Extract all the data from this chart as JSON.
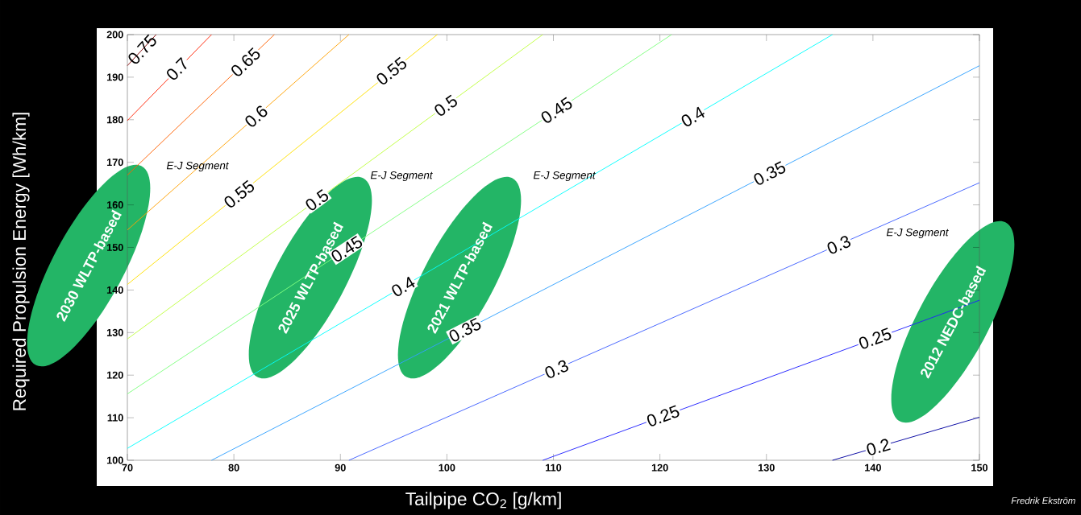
{
  "chart_data": {
    "type": "line",
    "xlabel": "Tailpipe CO$_{2}$  [g/km]",
    "ylabel": "Required Propulsion Energy  [Wh/km]",
    "xlim": [
      70,
      150
    ],
    "ylim": [
      100,
      200
    ],
    "xticks": [
      70,
      80,
      90,
      100,
      110,
      120,
      130,
      140,
      150
    ],
    "yticks": [
      100,
      110,
      120,
      130,
      140,
      150,
      160,
      170,
      180,
      190,
      200
    ],
    "series": [
      {
        "color": "#800000",
        "x": [
          70,
          72.7
        ],
        "values": [
          192.7,
          200
        ]
      },
      {
        "color": "#ff2000",
        "x": [
          70,
          77.9
        ],
        "values": [
          179.8,
          200
        ]
      },
      {
        "color": "#ff6000",
        "x": [
          70,
          83.8
        ],
        "values": [
          167.0,
          200
        ]
      },
      {
        "color": "#ffa000",
        "x": [
          70,
          90.8
        ],
        "values": [
          154.1,
          200
        ]
      },
      {
        "color": "#ffe000",
        "x": [
          70,
          99.1
        ],
        "values": [
          141.3,
          200
        ]
      },
      {
        "color": "#c0ff40",
        "x": [
          70,
          109.0
        ],
        "values": [
          128.5,
          200
        ]
      },
      {
        "color": "#80ff80",
        "x": [
          70,
          121.1
        ],
        "values": [
          115.6,
          200
        ]
      },
      {
        "color": "#00ffff",
        "x": [
          70,
          136.2
        ],
        "values": [
          102.8,
          200
        ]
      },
      {
        "color": "#30a0ff",
        "x": [
          77.9,
          150
        ],
        "values": [
          100,
          192.7
        ]
      },
      {
        "color": "#4060ff",
        "x": [
          90.8,
          150
        ],
        "values": [
          100,
          165.2
        ]
      },
      {
        "color": "#2020ff",
        "x": [
          109.0,
          150
        ],
        "values": [
          100,
          137.6
        ]
      },
      {
        "color": "#0000a0",
        "x": [
          136.2,
          150
        ],
        "values": [
          100,
          110.1
        ]
      }
    ],
    "annotations": [
      {
        "text": "0.75",
        "x": 71.4,
        "y": 196.5
      },
      {
        "text": "0.7",
        "x": 74.7,
        "y": 191.9
      },
      {
        "text": "0.65",
        "x": 81.1,
        "y": 193.5
      },
      {
        "text": "0.6",
        "x": 82.1,
        "y": 180.8
      },
      {
        "text": "0.55",
        "x": 80.5,
        "y": 162.5
      },
      {
        "text": "0.55",
        "x": 94.8,
        "y": 191.4
      },
      {
        "text": "0.5",
        "x": 87.8,
        "y": 161.1
      },
      {
        "text": "0.5",
        "x": 99.9,
        "y": 183.3
      },
      {
        "text": "0.45",
        "x": 90.6,
        "y": 149.6
      },
      {
        "text": "0.45",
        "x": 110.3,
        "y": 182.2
      },
      {
        "text": "0.4",
        "x": 95.9,
        "y": 140.8
      },
      {
        "text": "0.4",
        "x": 123.1,
        "y": 180.7
      },
      {
        "text": "0.35",
        "x": 101.7,
        "y": 130.6
      },
      {
        "text": "0.35",
        "x": 130.3,
        "y": 167.4
      },
      {
        "text": "0.3",
        "x": 110.3,
        "y": 121.4
      },
      {
        "text": "0.3",
        "x": 136.8,
        "y": 150.6
      },
      {
        "text": "0.25",
        "x": 120.3,
        "y": 110.4
      },
      {
        "text": "0.25",
        "x": 140.2,
        "y": 128.6
      },
      {
        "text": "0.2",
        "x": 140.5,
        "y": 103.1
      },
      "2030 WLTP-based",
      "2025 WLTP-based",
      "2021 WLTP-based",
      "2012 NEDC-based",
      "E-J Segment",
      "E-J Segment",
      "E-J Segment",
      "E-J Segment",
      "Fredrik Ekström"
    ]
  }
}
